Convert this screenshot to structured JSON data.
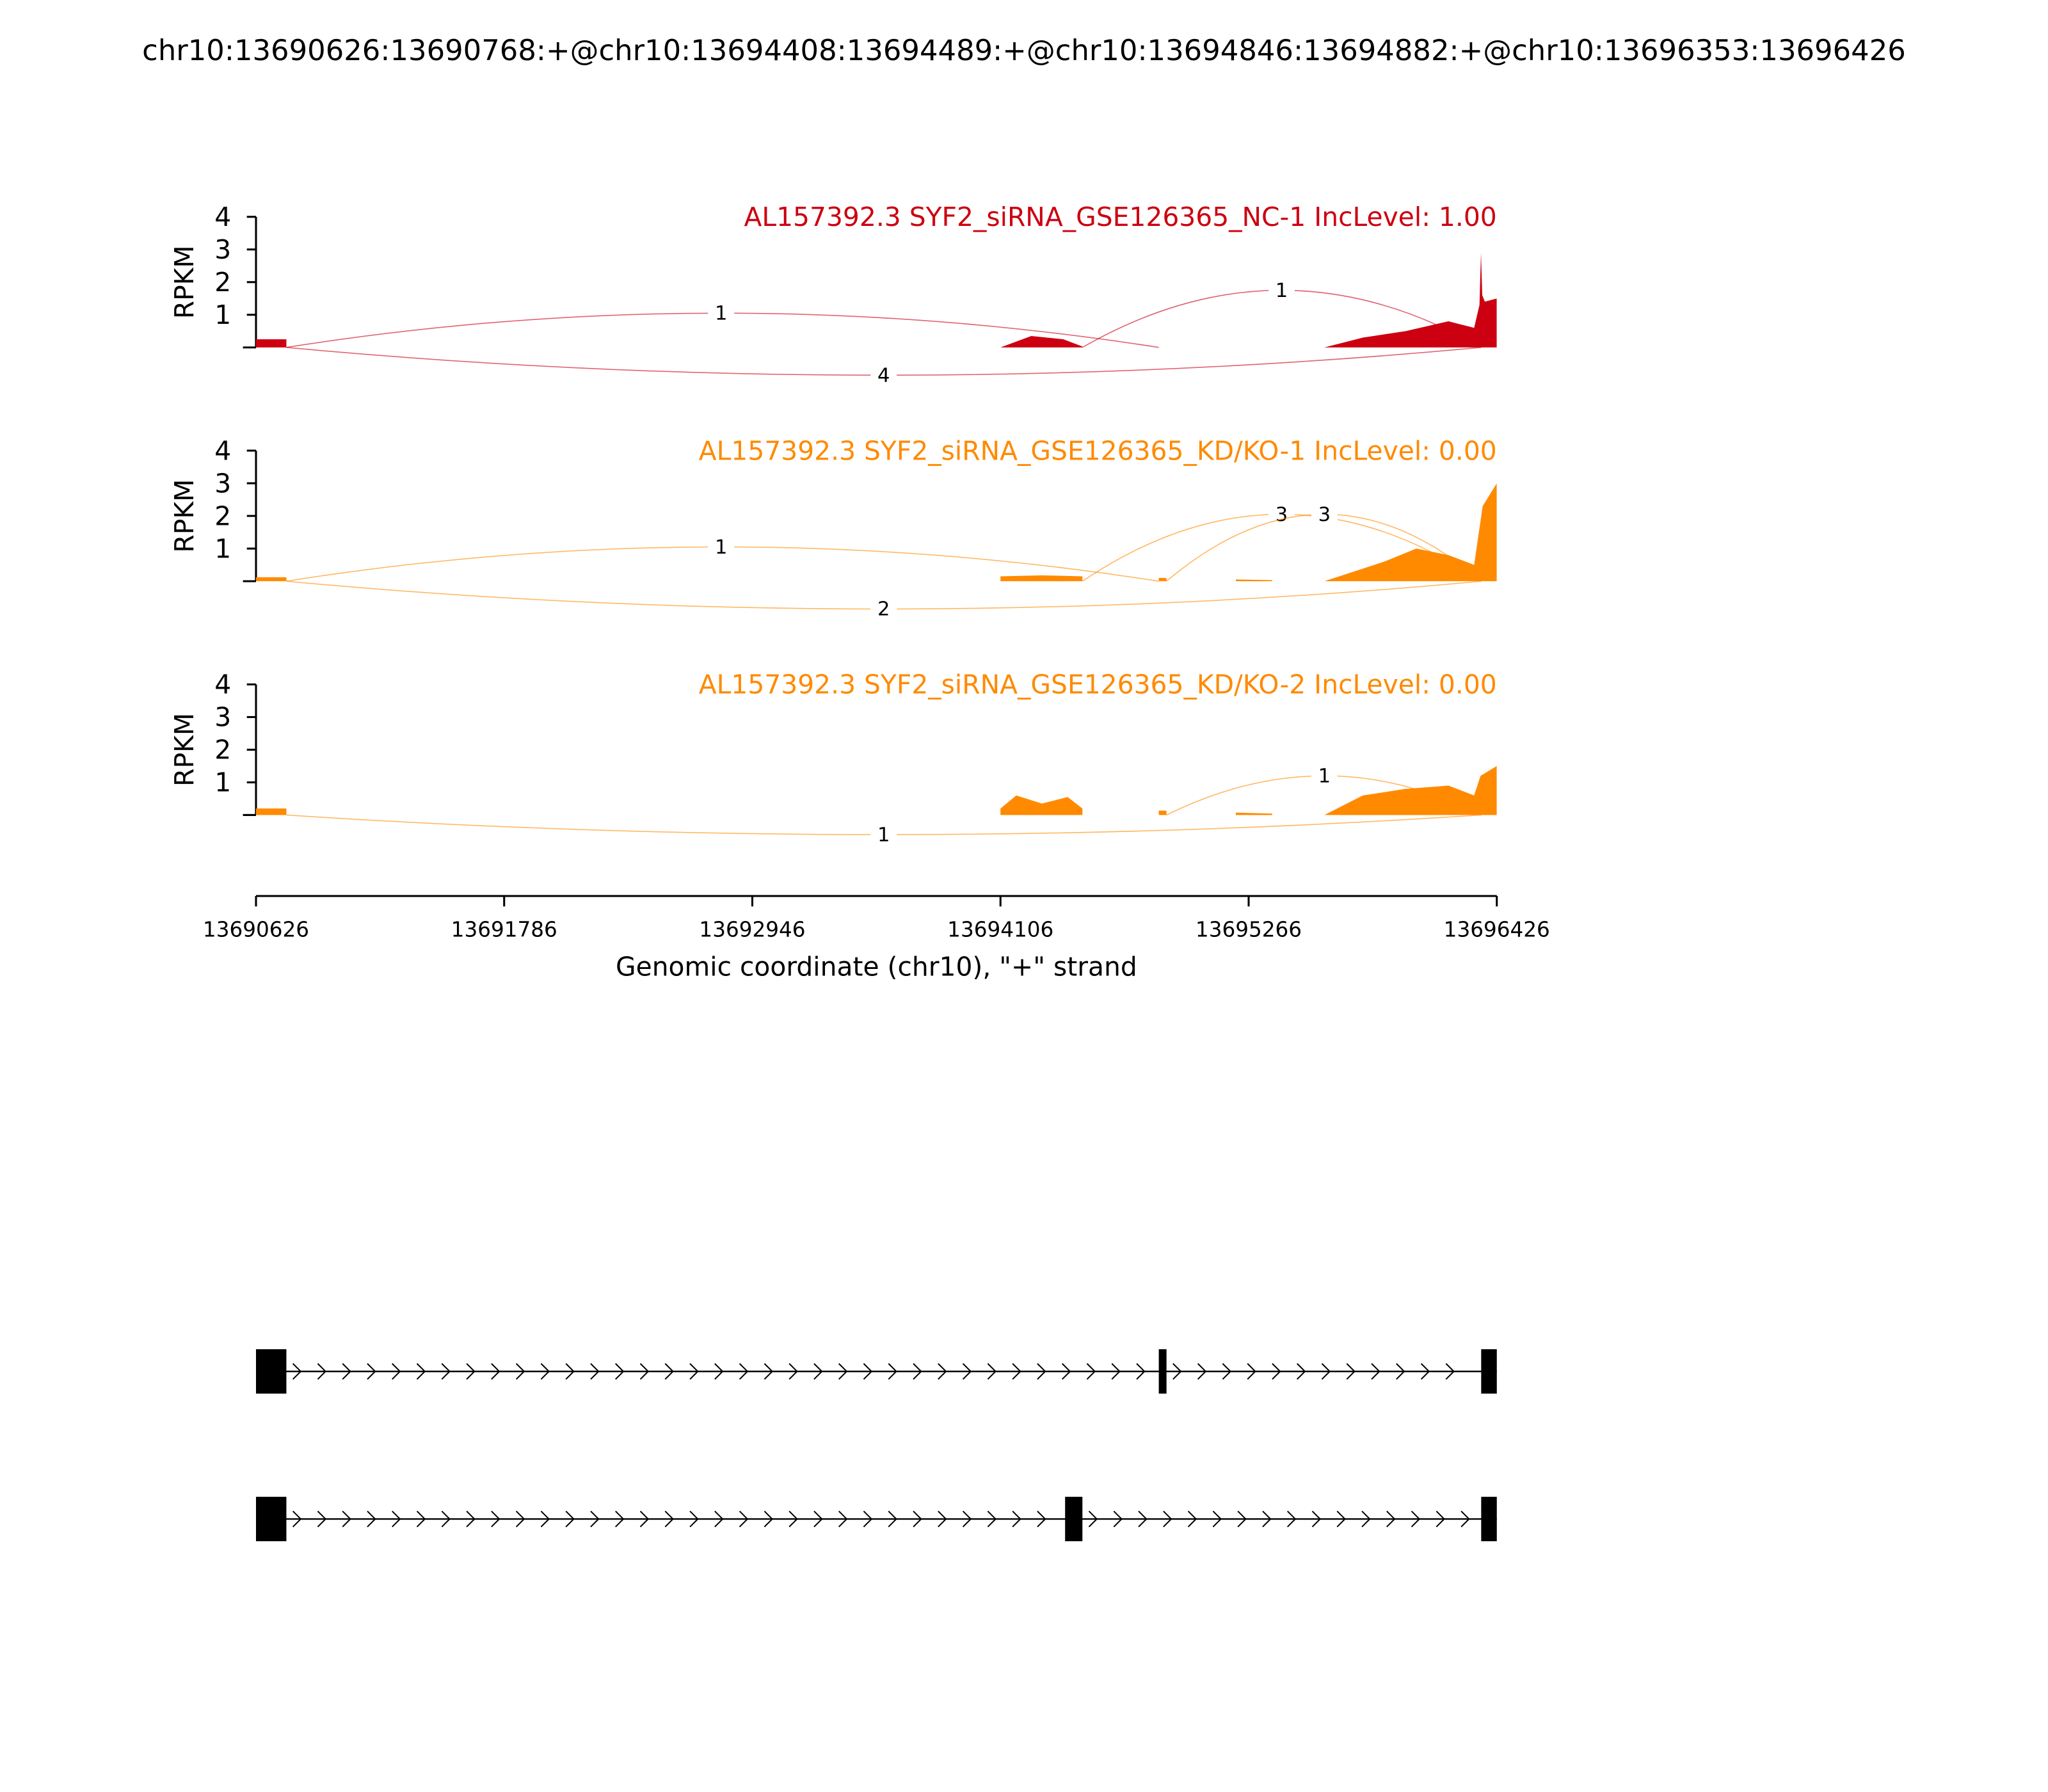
{
  "figure_title": "chr10:13690626:13690768:+@chr10:13694408:13694489:+@chr10:13694846:13694882:+@chr10:13696353:13696426",
  "x_axis": {
    "label": "Genomic coordinate (chr10), \"+\" strand",
    "range": [
      13690626,
      13696426
    ],
    "ticks": [
      {
        "value": 13690626,
        "label": "13690626"
      },
      {
        "value": 13691786,
        "label": "13691786"
      },
      {
        "value": 13692946,
        "label": "13692946"
      },
      {
        "value": 13694106,
        "label": "13694106"
      },
      {
        "value": 13695266,
        "label": "13695266"
      },
      {
        "value": 13696426,
        "label": "13696426"
      }
    ]
  },
  "chart_data": [
    {
      "type": "area",
      "title": "AL157392.3 SYF2_siRNA_GSE126365_NC-1 IncLevel: 1.00",
      "ylabel": "RPKM",
      "ylim": [
        0,
        4
      ],
      "yticks": [
        "1",
        "2",
        "3",
        "4"
      ],
      "color": "#cc0010",
      "coverage_x": [
        13690626,
        13690760,
        13694106,
        13694250,
        13694400,
        13694500,
        13695620,
        13695800,
        13696000,
        13696200,
        13696320,
        13696345,
        13696352,
        13696358,
        13696370,
        13696426
      ],
      "coverage_y": [
        0.25,
        0.25,
        0.0,
        0.35,
        0.25,
        0.0,
        0.0,
        0.3,
        0.5,
        0.8,
        0.6,
        1.3,
        2.9,
        1.6,
        1.4,
        1.5
      ],
      "blocks": [
        [
          13690626,
          13690768
        ],
        [
          13694106,
          13694489
        ],
        [
          13695206,
          13695376
        ],
        [
          13695620,
          13696426
        ]
      ],
      "junctions": [
        {
          "start": 13690768,
          "end": 13694846,
          "count": "1",
          "side": "above",
          "label_x": 13692800,
          "label_y": 1.05
        },
        {
          "start": 13694489,
          "end": 13696353,
          "count": "1",
          "side": "above",
          "label_x": 13695420,
          "label_y": 1.75
        },
        {
          "start": 13690768,
          "end": 13696353,
          "count": "4",
          "side": "below",
          "label_x": 13693560,
          "label_y": -0.85
        }
      ]
    },
    {
      "type": "area",
      "title": "AL157392.3 SYF2_siRNA_GSE126365_KD/KO-1 IncLevel: 0.00",
      "ylabel": "RPKM",
      "ylim": [
        0,
        4
      ],
      "yticks": [
        "1",
        "2",
        "3",
        "4"
      ],
      "color": "#ff8a00",
      "coverage_x": [
        13690626,
        13690760,
        13694106,
        13694300,
        13694489,
        13695620,
        13695900,
        13696050,
        13696200,
        13696320,
        13696360,
        13696426
      ],
      "coverage_y": [
        0.12,
        0.12,
        0.15,
        0.18,
        0.15,
        0.0,
        0.6,
        1.0,
        0.8,
        0.5,
        2.3,
        3.0
      ],
      "blocks": [
        [
          13690626,
          13690768
        ],
        [
          13694106,
          13694489
        ],
        [
          13694846,
          13694882
        ],
        [
          13695206,
          13695376
        ],
        [
          13695620,
          13696426
        ]
      ],
      "junctions": [
        {
          "start": 13690768,
          "end": 13694846,
          "count": "1",
          "side": "above",
          "label_x": 13692800,
          "label_y": 1.05
        },
        {
          "start": 13694489,
          "end": 13696353,
          "count": "3",
          "side": "above",
          "label_x": 13695420,
          "label_y": 2.05
        },
        {
          "start": 13694882,
          "end": 13696353,
          "count": "3",
          "side": "above",
          "label_x": 13695620,
          "label_y": 2.05
        },
        {
          "start": 13690768,
          "end": 13696353,
          "count": "2",
          "side": "below",
          "label_x": 13693560,
          "label_y": -0.85
        }
      ]
    },
    {
      "type": "area",
      "title": "AL157392.3 SYF2_siRNA_GSE126365_KD/KO-2 IncLevel: 0.00",
      "ylabel": "RPKM",
      "ylim": [
        0,
        4
      ],
      "yticks": [
        "1",
        "2",
        "3",
        "4"
      ],
      "color": "#ff8a00",
      "coverage_x": [
        13690626,
        13690760,
        13694106,
        13694180,
        13694300,
        13694420,
        13694489,
        13695620,
        13695800,
        13696000,
        13696200,
        13696320,
        13696350,
        13696426
      ],
      "coverage_y": [
        0.2,
        0.2,
        0.2,
        0.6,
        0.35,
        0.55,
        0.2,
        0.0,
        0.6,
        0.8,
        0.9,
        0.6,
        1.2,
        1.5
      ],
      "blocks": [
        [
          13690626,
          13690768
        ],
        [
          13694106,
          13694489
        ],
        [
          13694846,
          13694882
        ],
        [
          13695206,
          13695376
        ],
        [
          13695620,
          13696426
        ]
      ],
      "junctions": [
        {
          "start": 13694882,
          "end": 13696353,
          "count": "1",
          "side": "above",
          "label_x": 13695620,
          "label_y": 1.2
        },
        {
          "start": 13690768,
          "end": 13696353,
          "count": "1",
          "side": "below",
          "label_x": 13693560,
          "label_y": -0.6
        }
      ]
    }
  ],
  "isoforms": [
    {
      "exons": [
        [
          13690626,
          13690768
        ],
        [
          13694846,
          13694882
        ],
        [
          13696353,
          13696426
        ]
      ]
    },
    {
      "exons": [
        [
          13690626,
          13690768
        ],
        [
          13694408,
          13694489
        ],
        [
          13696353,
          13696426
        ]
      ]
    }
  ]
}
